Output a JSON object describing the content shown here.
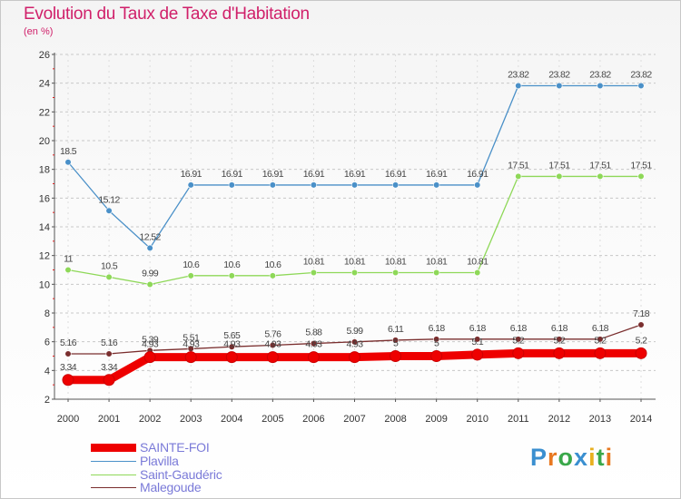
{
  "title": "Evolution du Taux de Taxe d'Habitation",
  "subtitle": "(en %)",
  "logo": "Proxiti",
  "chart_data": {
    "type": "line",
    "title": "Evolution du Taux de Taxe d'Habitation",
    "ylabel": "(en %)",
    "xlabel": "",
    "x": [
      "2000",
      "2001",
      "2002",
      "2003",
      "2004",
      "2005",
      "2006",
      "2007",
      "2008",
      "2009",
      "2010",
      "2011",
      "2012",
      "2013",
      "2014"
    ],
    "ylim": [
      2,
      26
    ],
    "yticks": [
      2,
      4,
      6,
      8,
      10,
      12,
      14,
      16,
      18,
      20,
      22,
      24,
      26
    ],
    "grid": true,
    "legend": "bottom-left",
    "series": [
      {
        "name": "SAINTE-FOI",
        "color": "#ee0000",
        "values": [
          3.34,
          3.34,
          4.93,
          4.93,
          4.93,
          4.93,
          4.93,
          4.93,
          5,
          5,
          5.1,
          5.2,
          5.2,
          5.2,
          5.2
        ],
        "labels": [
          "3.34",
          "3.34",
          "4.93",
          "4.93",
          "4.93",
          "4.93",
          "4.93",
          "4.93",
          "5",
          "5",
          "5.1",
          "5.2",
          "5.2",
          "5.2",
          "5.2"
        ]
      },
      {
        "name": "Plavilla",
        "color": "#4a90c8",
        "values": [
          18.5,
          15.12,
          12.52,
          16.91,
          16.91,
          16.91,
          16.91,
          16.91,
          16.91,
          16.91,
          16.91,
          23.82,
          23.82,
          23.82,
          23.82
        ],
        "labels": [
          "18.5",
          "15.12",
          "12.52",
          "16.91",
          "16.91",
          "16.91",
          "16.91",
          "16.91",
          "16.91",
          "16.91",
          "16.91",
          "23.82",
          "23.82",
          "23.82",
          "23.82"
        ]
      },
      {
        "name": "Saint-Gaudéric",
        "color": "#8ed858",
        "values": [
          11,
          10.5,
          9.99,
          10.6,
          10.6,
          10.6,
          10.81,
          10.81,
          10.81,
          10.81,
          10.81,
          17.51,
          17.51,
          17.51,
          17.51
        ],
        "labels": [
          "11",
          "10.5",
          "9.99",
          "10.6",
          "10.6",
          "10.6",
          "10.81",
          "10.81",
          "10.81",
          "10.81",
          "10.81",
          "17.51",
          "17.51",
          "17.51",
          "17.51"
        ]
      },
      {
        "name": "Malegoude",
        "color": "#7a2e2e",
        "values": [
          5.16,
          5.16,
          5.39,
          5.51,
          5.65,
          5.76,
          5.88,
          5.99,
          6.11,
          6.18,
          6.18,
          6.18,
          6.18,
          6.18,
          7.18
        ],
        "labels": [
          "5.16",
          "5.16",
          "5.39",
          "5.51",
          "5.65",
          "5.76",
          "5.88",
          "5.99",
          "6.11",
          "6.18",
          "6.18",
          "6.18",
          "6.18",
          "6.18",
          "7.18"
        ]
      }
    ]
  }
}
